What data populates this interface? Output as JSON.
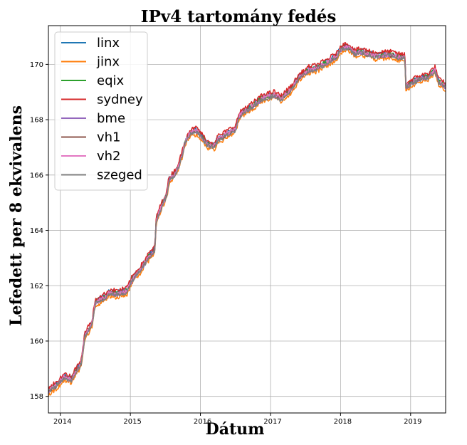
{
  "chart_data": {
    "type": "line",
    "title": "IPv4 tartomány fedés",
    "xlabel": "Dátum",
    "ylabel": "Lefedett per 8 ekvivalens",
    "xlim": [
      2013.83,
      2019.5
    ],
    "ylim": [
      157.4,
      171.4
    ],
    "x_ticks": [
      2014,
      2015,
      2016,
      2017,
      2018,
      2019
    ],
    "x_tick_labels": [
      "2014",
      "2015",
      "2016",
      "2017",
      "2018",
      "2019"
    ],
    "y_ticks": [
      158,
      160,
      162,
      164,
      166,
      168,
      170
    ],
    "y_tick_labels": [
      "158",
      "160",
      "162",
      "164",
      "166",
      "168",
      "170"
    ],
    "grid": true,
    "legend_position": "top-left",
    "base_x": [
      2013.83,
      2013.95,
      2014.05,
      2014.15,
      2014.2,
      2014.3,
      2014.35,
      2014.45,
      2014.5,
      2014.65,
      2014.7,
      2014.8,
      2014.95,
      2015.0,
      2015.05,
      2015.15,
      2015.25,
      2015.35,
      2015.37,
      2015.45,
      2015.52,
      2015.55,
      2015.65,
      2015.7,
      2015.8,
      2015.85,
      2015.95,
      2016.1,
      2016.2,
      2016.25,
      2016.3,
      2016.45,
      2016.5,
      2016.55,
      2016.62,
      2016.7,
      2016.75,
      2016.85,
      2016.9,
      2017.0,
      2017.05,
      2017.15,
      2017.3,
      2017.4,
      2017.55,
      2017.65,
      2017.8,
      2017.95,
      2018.0,
      2018.1,
      2018.2,
      2018.3,
      2018.5,
      2018.7,
      2018.85,
      2018.92,
      2018.93,
      2019.0,
      2019.1,
      2019.25,
      2019.35,
      2019.4,
      2019.5
    ],
    "base_y": [
      158.2,
      158.4,
      158.7,
      158.6,
      158.8,
      159.2,
      160.2,
      160.6,
      161.4,
      161.6,
      161.75,
      161.7,
      161.8,
      162.1,
      162.3,
      162.6,
      163.0,
      163.3,
      164.4,
      164.9,
      165.3,
      165.8,
      166.1,
      166.4,
      167.3,
      167.5,
      167.6,
      167.1,
      167.05,
      167.3,
      167.35,
      167.6,
      167.65,
      168.1,
      168.3,
      168.4,
      168.5,
      168.7,
      168.8,
      168.85,
      168.9,
      168.75,
      169.1,
      169.5,
      169.8,
      169.85,
      170.05,
      170.3,
      170.55,
      170.65,
      170.4,
      170.45,
      170.3,
      170.35,
      170.25,
      170.25,
      169.2,
      169.3,
      169.45,
      169.55,
      169.8,
      169.35,
      169.2
    ],
    "series": [
      {
        "name": "linx",
        "color": "#1f77b4",
        "offset": 0.05
      },
      {
        "name": "jinx",
        "color": "#ff7f0e",
        "offset": -0.12
      },
      {
        "name": "eqix",
        "color": "#2ca02c",
        "offset": 0.03
      },
      {
        "name": "sydney",
        "color": "#d62728",
        "offset": 0.12
      },
      {
        "name": "bme",
        "color": "#9467bd",
        "offset": -0.02
      },
      {
        "name": "vh1",
        "color": "#8c564b",
        "offset": 0.0
      },
      {
        "name": "vh2",
        "color": "#e377c2",
        "offset": 0.01
      },
      {
        "name": "szeged",
        "color": "#7f7f7f",
        "offset": -0.04
      }
    ]
  }
}
